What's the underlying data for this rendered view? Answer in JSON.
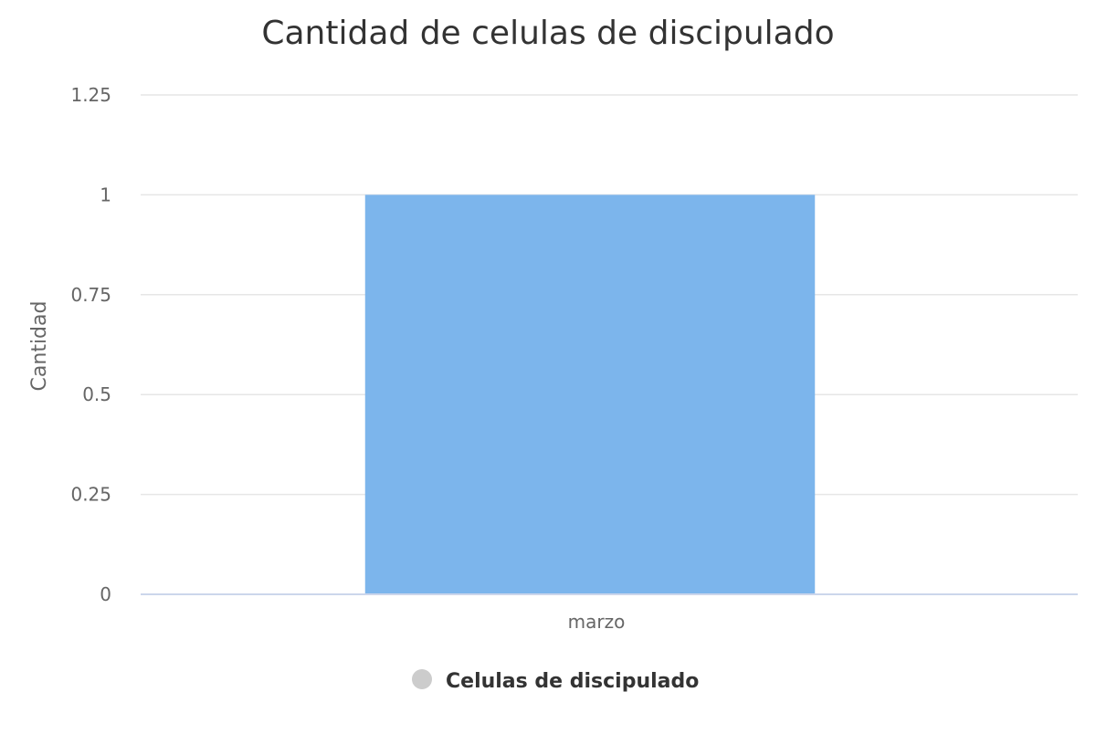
{
  "chart_data": {
    "type": "bar",
    "title": "Cantidad de celulas de discipulado",
    "xlabel": "",
    "ylabel": "Cantidad",
    "categories": [
      "marzo"
    ],
    "series": [
      {
        "name": "Celulas de discipulado",
        "values": [
          1
        ],
        "color": "#7cb5ec"
      }
    ],
    "ylim": [
      0,
      1.25
    ],
    "yticks": [
      "0",
      "0.25",
      "0.5",
      "0.75",
      "1",
      "1.25"
    ],
    "grid": true,
    "legend": "bottom-center",
    "legend_marker_color": "#cccccc"
  }
}
